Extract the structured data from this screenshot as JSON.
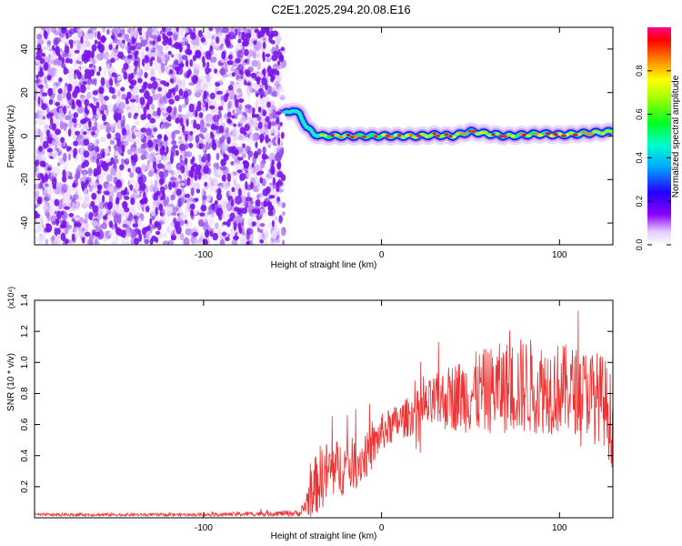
{
  "title": "C2E1.2025.294.20.08.E16",
  "chart_data": [
    {
      "type": "heatmap",
      "xlabel": "Height of straight line (km)",
      "ylabel": "Frequency (Hz)",
      "xlim": [
        -195,
        130
      ],
      "ylim": [
        -50,
        50
      ],
      "xticks": [
        -100,
        0,
        100
      ],
      "yticks": [
        -40,
        -20,
        0,
        20,
        40
      ],
      "colorbar": {
        "label": "Normalized spectral amplitude",
        "range": [
          0,
          1
        ],
        "ticks": [
          "0.0",
          "0.2",
          "0.4",
          "0.6",
          "0.8"
        ]
      },
      "noise_region_x": [
        -195,
        -55
      ],
      "signal_track": {
        "x": [
          -55,
          -50,
          -46,
          -42,
          -38,
          -34,
          -30,
          -20,
          -10,
          0,
          10,
          20,
          30,
          40,
          50,
          60,
          70,
          80,
          90,
          100,
          110,
          120,
          130
        ],
        "freq": [
          10,
          12,
          10,
          4,
          1,
          0,
          0,
          0,
          0,
          0,
          0,
          0,
          0.5,
          0,
          2,
          1,
          0,
          0.5,
          1,
          0.5,
          1,
          1.5,
          2
        ]
      }
    },
    {
      "type": "line",
      "xlabel": "Height of straight line (km)",
      "ylabel": "SNR (10 * v/v)",
      "y_multiplier": "(x10⁴)",
      "xlim": [
        -195,
        130
      ],
      "ylim": [
        0,
        1.4
      ],
      "xticks": [
        -100,
        0,
        100
      ],
      "yticks": [
        0.2,
        0.4,
        0.6,
        0.8,
        1.0,
        1.2,
        1.4
      ],
      "series": [
        {
          "color": "#ee3333",
          "envelope_x": [
            -195,
            -100,
            -45,
            -40,
            -35,
            -30,
            -20,
            -10,
            -5,
            0,
            10,
            20,
            30,
            40,
            50,
            60,
            70,
            80,
            90,
            100,
            110,
            120,
            125,
            130
          ],
          "envelope_mean": [
            0.02,
            0.02,
            0.03,
            0.15,
            0.25,
            0.3,
            0.33,
            0.38,
            0.45,
            0.55,
            0.62,
            0.68,
            0.74,
            0.78,
            0.8,
            0.82,
            0.84,
            0.85,
            0.84,
            0.83,
            0.82,
            0.8,
            0.75,
            0.6
          ],
          "envelope_amp": [
            0.01,
            0.01,
            0.02,
            0.15,
            0.22,
            0.2,
            0.18,
            0.15,
            0.14,
            0.12,
            0.12,
            0.14,
            0.18,
            0.22,
            0.26,
            0.28,
            0.3,
            0.32,
            0.3,
            0.3,
            0.28,
            0.28,
            0.3,
            0.3
          ]
        }
      ]
    }
  ]
}
